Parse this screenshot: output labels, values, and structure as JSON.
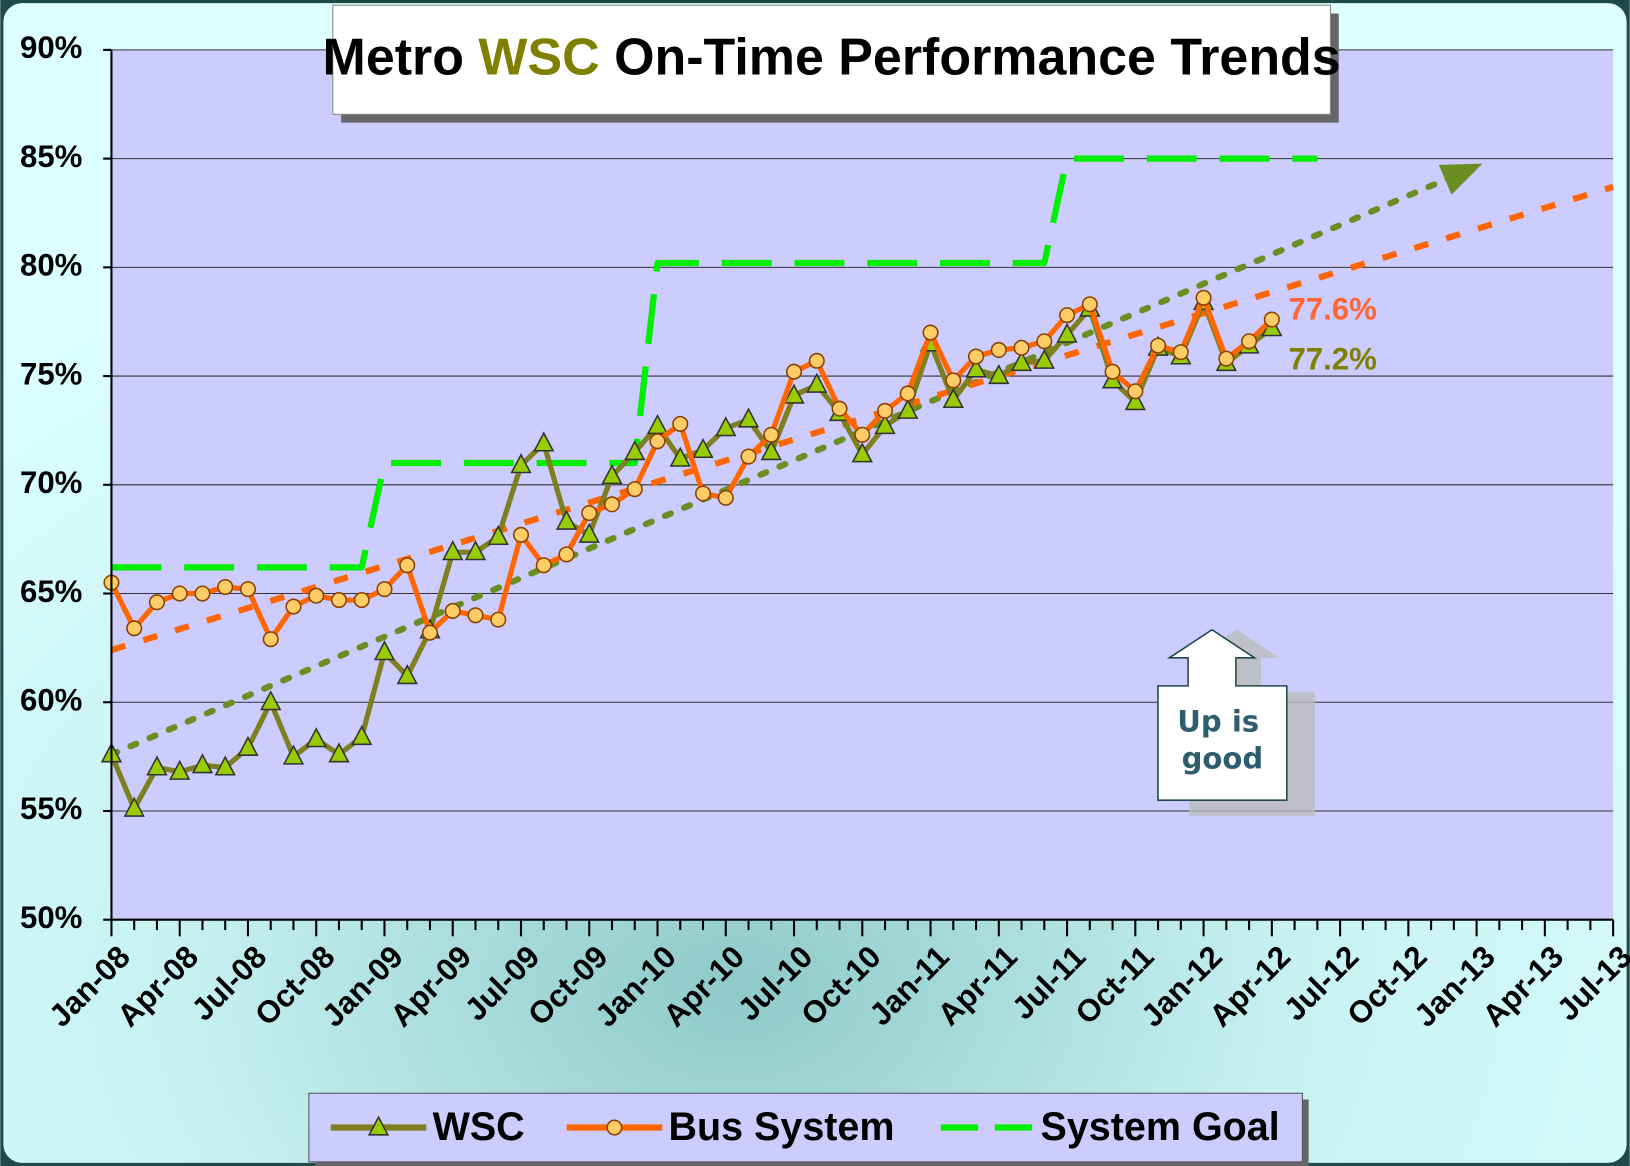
{
  "chart_data": {
    "type": "line",
    "title": [
      "Metro",
      "WSC",
      "On-Time Performance Trends"
    ],
    "title_colors": [
      "#000000",
      "#808000",
      "#000000"
    ],
    "categories": [
      "Jan-08",
      null,
      null,
      "Apr-08",
      null,
      null,
      "Jul-08",
      null,
      null,
      "Oct-08",
      null,
      null,
      "Jan-09",
      null,
      null,
      "Apr-09",
      null,
      null,
      "Jul-09",
      null,
      null,
      "Oct-09",
      null,
      null,
      "Jan-10",
      null,
      null,
      "Apr-10",
      null,
      null,
      "Jul-10",
      null,
      null,
      "Oct-10",
      null,
      null,
      "Jan-11",
      null,
      null,
      "Apr-11",
      null,
      null,
      "Jul-11",
      null,
      null,
      "Oct-11",
      null,
      null,
      "Jan-12",
      null,
      null,
      "Apr-12",
      null,
      null,
      "Jul-12",
      null,
      null,
      "Oct-12",
      null,
      null,
      "Jan-13",
      null,
      null,
      "Apr-13",
      null,
      null,
      "Jul-13"
    ],
    "series": [
      {
        "name": "WSC",
        "color": "#7f7f1f",
        "marker": "triangle",
        "marker_color": "#99cc00",
        "values": [
          57.6,
          55.1,
          57.0,
          56.8,
          57.1,
          57.0,
          57.9,
          60.0,
          57.5,
          58.3,
          57.6,
          58.4,
          62.3,
          61.2,
          63.3,
          66.9,
          66.9,
          67.6,
          70.9,
          71.9,
          68.3,
          67.7,
          70.4,
          71.5,
          72.7,
          71.2,
          71.6,
          72.6,
          73.0,
          71.5,
          74.1,
          74.6,
          73.3,
          71.4,
          72.7,
          73.4,
          76.5,
          73.9,
          75.3,
          75.0,
          75.6,
          75.7,
          76.9,
          78.1,
          74.8,
          73.8,
          76.3,
          75.9,
          78.4,
          75.6,
          76.4,
          77.2,
          null,
          null,
          null,
          null,
          null,
          null,
          null,
          null,
          null,
          null,
          null,
          null,
          null,
          null,
          null
        ],
        "value_labels": [
          null,
          null,
          null,
          null,
          null,
          null,
          null,
          null,
          null,
          null,
          null,
          null,
          null,
          null,
          null,
          null,
          null,
          null,
          null,
          null,
          null,
          null,
          null,
          null,
          null,
          null,
          null,
          null,
          null,
          null,
          null,
          null,
          null,
          null,
          null,
          null,
          null,
          null,
          null,
          null,
          null,
          null,
          null,
          null,
          null,
          null,
          null,
          null,
          null,
          null,
          null,
          "77.2%",
          null,
          null,
          null,
          null,
          null,
          null,
          null,
          null,
          null,
          null,
          null,
          null,
          null,
          null,
          null
        ]
      },
      {
        "name": "Bus System",
        "color": "#ff6600",
        "marker": "circle",
        "marker_color": "#ffcc66",
        "values": [
          65.5,
          63.4,
          64.6,
          65.0,
          65.0,
          65.3,
          65.2,
          62.9,
          64.4,
          64.9,
          64.7,
          64.7,
          65.2,
          66.3,
          63.2,
          64.2,
          64.0,
          63.8,
          67.7,
          66.3,
          66.8,
          68.7,
          69.1,
          69.8,
          72.0,
          72.8,
          69.6,
          69.4,
          71.3,
          72.3,
          75.2,
          75.7,
          73.5,
          72.3,
          73.4,
          74.2,
          77.0,
          74.8,
          75.9,
          76.2,
          76.3,
          76.6,
          77.8,
          78.3,
          75.2,
          74.3,
          76.4,
          76.1,
          78.6,
          75.8,
          76.6,
          77.6,
          null,
          null,
          null,
          null,
          null,
          null,
          null,
          null,
          null,
          null,
          null,
          null,
          null,
          null,
          null
        ],
        "value_labels": [
          null,
          null,
          null,
          null,
          null,
          null,
          null,
          null,
          null,
          null,
          null,
          null,
          null,
          null,
          null,
          null,
          null,
          null,
          null,
          null,
          null,
          null,
          null,
          null,
          null,
          null,
          null,
          null,
          null,
          null,
          null,
          null,
          null,
          null,
          null,
          null,
          null,
          null,
          null,
          null,
          null,
          null,
          null,
          null,
          null,
          null,
          null,
          null,
          null,
          null,
          null,
          "77.6%",
          null,
          null,
          null,
          null,
          null,
          null,
          null,
          null,
          null,
          null,
          null,
          null,
          null,
          null,
          null
        ]
      },
      {
        "name": "System Goal",
        "color": "#00ee00",
        "dashed": true,
        "values": [
          66.2,
          66.2,
          66.2,
          66.2,
          66.2,
          66.2,
          66.2,
          66.2,
          66.2,
          66.2,
          66.2,
          66.2,
          71,
          71,
          71,
          71,
          71,
          71,
          71,
          71,
          71,
          71,
          71,
          71,
          80.2,
          80.2,
          80.2,
          80.2,
          80.2,
          80.2,
          80.2,
          80.2,
          80.2,
          80.2,
          80.2,
          80.2,
          80.2,
          80.2,
          80.2,
          80.2,
          80.2,
          80.2,
          85,
          85,
          85,
          85,
          85,
          85,
          85,
          85,
          85,
          85,
          85,
          85,
          null,
          null,
          null,
          null,
          null,
          null,
          null,
          null,
          null,
          null,
          null,
          null,
          null
        ]
      }
    ],
    "trends": [
      {
        "color": "#6b8e23",
        "x": [
          0,
          59
        ],
        "values": [
          57.6,
          84.2
        ],
        "arrow": true
      },
      {
        "color": "#ff6600",
        "x": [
          0,
          66
        ],
        "values": [
          62.4,
          83.7
        ],
        "arrow": false
      }
    ],
    "ylim": [
      50,
      90
    ],
    "yticks": [
      {
        "value": 50,
        "label": "50%"
      },
      {
        "value": 55,
        "label": "55%"
      },
      {
        "value": 60,
        "label": "60%"
      },
      {
        "value": 65,
        "label": "65%"
      },
      {
        "value": 70,
        "label": "70%"
      },
      {
        "value": 75,
        "label": "75%"
      },
      {
        "value": 80,
        "label": "80%"
      },
      {
        "value": 85,
        "label": "85%"
      },
      {
        "value": 90,
        "label": "90%"
      }
    ],
    "grid": true,
    "legend": "bottom",
    "annotation": [
      "Up is",
      "good"
    ]
  }
}
